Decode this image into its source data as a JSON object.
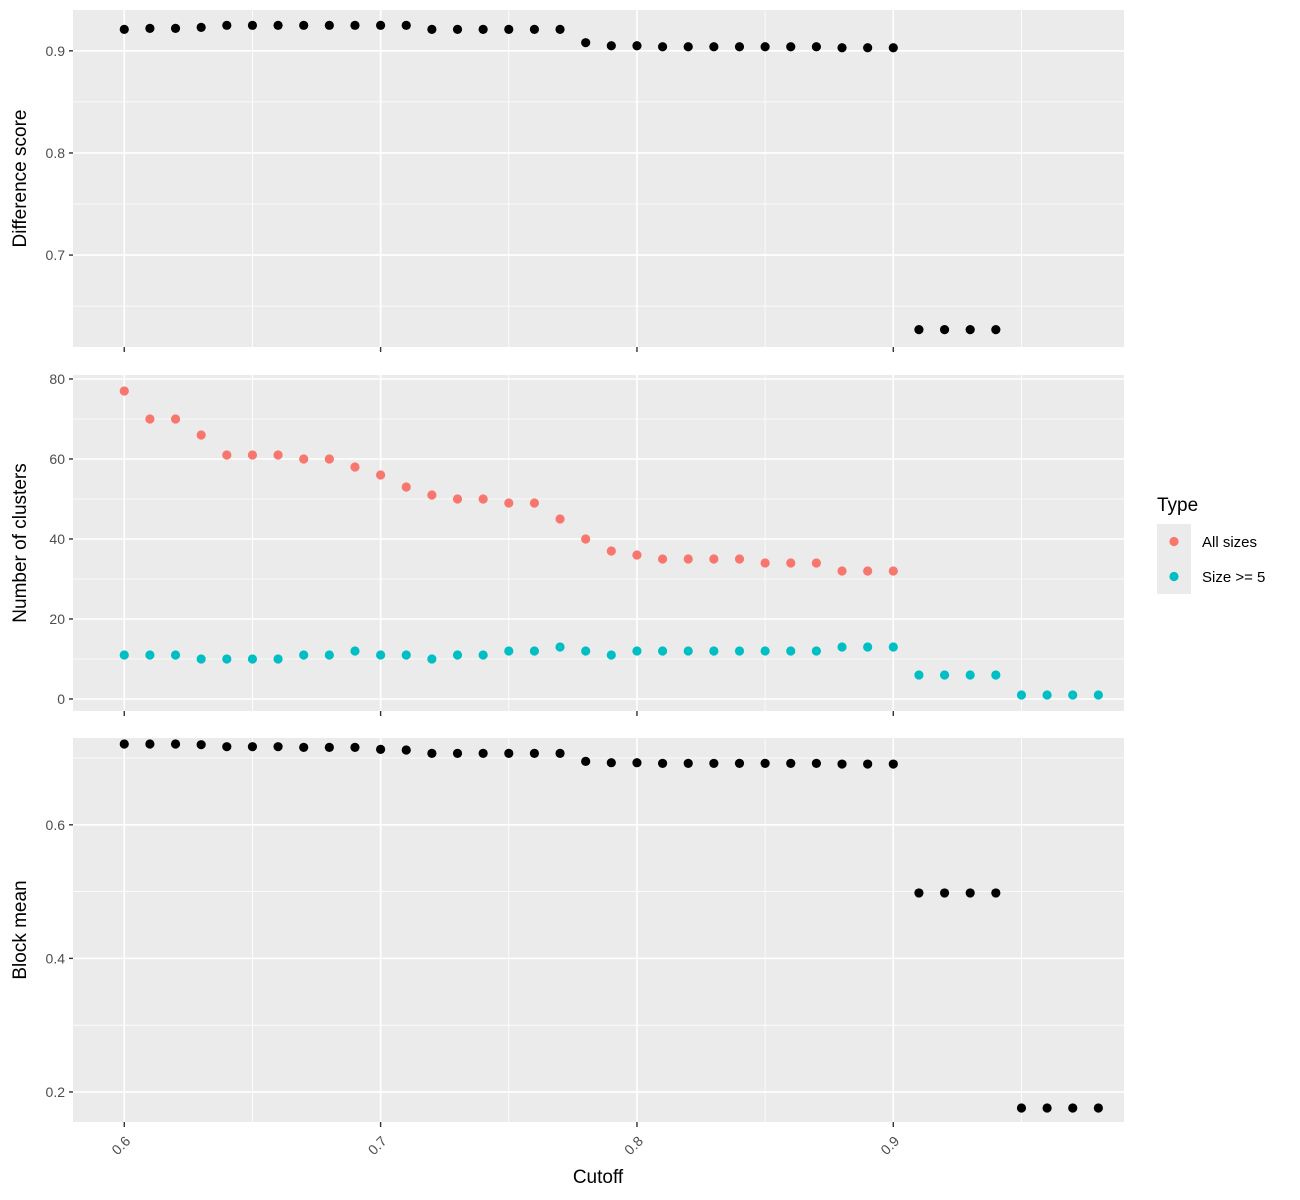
{
  "chart_data": {
    "type": "scatter",
    "xlabel": "Cutoff",
    "xlim": [
      0.58,
      0.99
    ],
    "x_ticks": [
      0.6,
      0.7,
      0.8,
      0.9
    ],
    "x_tick_labels": [
      "0.6",
      "0.7",
      "0.8",
      "0.9"
    ],
    "x_tick_label_rotation": "45 degrees",
    "facets": [
      {
        "id": "difference",
        "ylabel": "Difference score",
        "ylim": [
          0.61,
          0.94
        ],
        "y_ticks": [
          0.7,
          0.8,
          0.9
        ],
        "y_tick_labels": [
          "0.7",
          "0.8",
          "0.9"
        ],
        "series": [
          {
            "color": "#000000",
            "x": [
              0.6,
              0.61,
              0.62,
              0.63,
              0.64,
              0.65,
              0.66,
              0.67,
              0.68,
              0.69,
              0.7,
              0.71,
              0.72,
              0.73,
              0.74,
              0.75,
              0.76,
              0.77,
              0.78,
              0.79,
              0.8,
              0.81,
              0.82,
              0.83,
              0.84,
              0.85,
              0.86,
              0.87,
              0.88,
              0.89,
              0.9,
              0.91,
              0.92,
              0.93,
              0.94
            ],
            "y": [
              0.921,
              0.922,
              0.922,
              0.923,
              0.925,
              0.925,
              0.925,
              0.925,
              0.925,
              0.925,
              0.925,
              0.925,
              0.921,
              0.921,
              0.921,
              0.921,
              0.921,
              0.921,
              0.908,
              0.905,
              0.905,
              0.904,
              0.904,
              0.904,
              0.904,
              0.904,
              0.904,
              0.904,
              0.903,
              0.903,
              0.903,
              0.627,
              0.627,
              0.627,
              0.627
            ]
          }
        ]
      },
      {
        "id": "clusters",
        "ylabel": "Number of clusters",
        "ylim": [
          -3,
          81
        ],
        "y_ticks": [
          0,
          20,
          40,
          60,
          80
        ],
        "y_tick_labels": [
          "0",
          "20",
          "40",
          "60",
          "80"
        ],
        "series": [
          {
            "name": "All sizes",
            "color": "#f8766d",
            "x": [
              0.6,
              0.61,
              0.62,
              0.63,
              0.64,
              0.65,
              0.66,
              0.67,
              0.68,
              0.69,
              0.7,
              0.71,
              0.72,
              0.73,
              0.74,
              0.75,
              0.76,
              0.77,
              0.78,
              0.79,
              0.8,
              0.81,
              0.82,
              0.83,
              0.84,
              0.85,
              0.86,
              0.87,
              0.88,
              0.89,
              0.9
            ],
            "y": [
              77,
              70,
              70,
              66,
              61,
              61,
              61,
              60,
              60,
              58,
              56,
              53,
              51,
              50,
              50,
              49,
              49,
              45,
              40,
              37,
              36,
              35,
              35,
              35,
              35,
              34,
              34,
              34,
              32,
              32,
              32
            ]
          },
          {
            "name": "Size >= 5",
            "color": "#00bfc4",
            "x": [
              0.6,
              0.61,
              0.62,
              0.63,
              0.64,
              0.65,
              0.66,
              0.67,
              0.68,
              0.69,
              0.7,
              0.71,
              0.72,
              0.73,
              0.74,
              0.75,
              0.76,
              0.77,
              0.78,
              0.79,
              0.8,
              0.81,
              0.82,
              0.83,
              0.84,
              0.85,
              0.86,
              0.87,
              0.88,
              0.89,
              0.9,
              0.91,
              0.92,
              0.93,
              0.94,
              0.95,
              0.96,
              0.97,
              0.98
            ],
            "y": [
              11,
              11,
              11,
              10,
              10,
              10,
              10,
              11,
              11,
              12,
              11,
              11,
              10,
              11,
              11,
              12,
              12,
              13,
              12,
              11,
              12,
              12,
              12,
              12,
              12,
              12,
              12,
              12,
              13,
              13,
              13,
              6,
              6,
              6,
              6,
              1,
              1,
              1,
              1
            ]
          }
        ]
      },
      {
        "id": "blockmean",
        "ylabel": "Block mean",
        "ylim": [
          0.155,
          0.73
        ],
        "y_ticks": [
          0.2,
          0.4,
          0.6
        ],
        "y_tick_labels": [
          "0.2",
          "0.4",
          "0.6"
        ],
        "series": [
          {
            "color": "#000000",
            "x": [
              0.6,
              0.61,
              0.62,
              0.63,
              0.64,
              0.65,
              0.66,
              0.67,
              0.68,
              0.69,
              0.7,
              0.71,
              0.72,
              0.73,
              0.74,
              0.75,
              0.76,
              0.77,
              0.78,
              0.79,
              0.8,
              0.81,
              0.82,
              0.83,
              0.84,
              0.85,
              0.86,
              0.87,
              0.88,
              0.89,
              0.9,
              0.91,
              0.92,
              0.93,
              0.94,
              0.95,
              0.96,
              0.97,
              0.98
            ],
            "y": [
              0.721,
              0.721,
              0.721,
              0.72,
              0.717,
              0.717,
              0.717,
              0.716,
              0.716,
              0.716,
              0.713,
              0.712,
              0.707,
              0.707,
              0.707,
              0.707,
              0.707,
              0.707,
              0.695,
              0.693,
              0.693,
              0.692,
              0.692,
              0.692,
              0.692,
              0.692,
              0.692,
              0.692,
              0.691,
              0.691,
              0.691,
              0.498,
              0.498,
              0.498,
              0.498,
              0.176,
              0.176,
              0.176,
              0.176
            ]
          }
        ]
      }
    ],
    "legend": {
      "title": "Type",
      "placement": "right",
      "entries": [
        {
          "label": "All sizes",
          "color": "#f8766d"
        },
        {
          "label": "Size >= 5",
          "color": "#00bfc4"
        }
      ]
    }
  }
}
